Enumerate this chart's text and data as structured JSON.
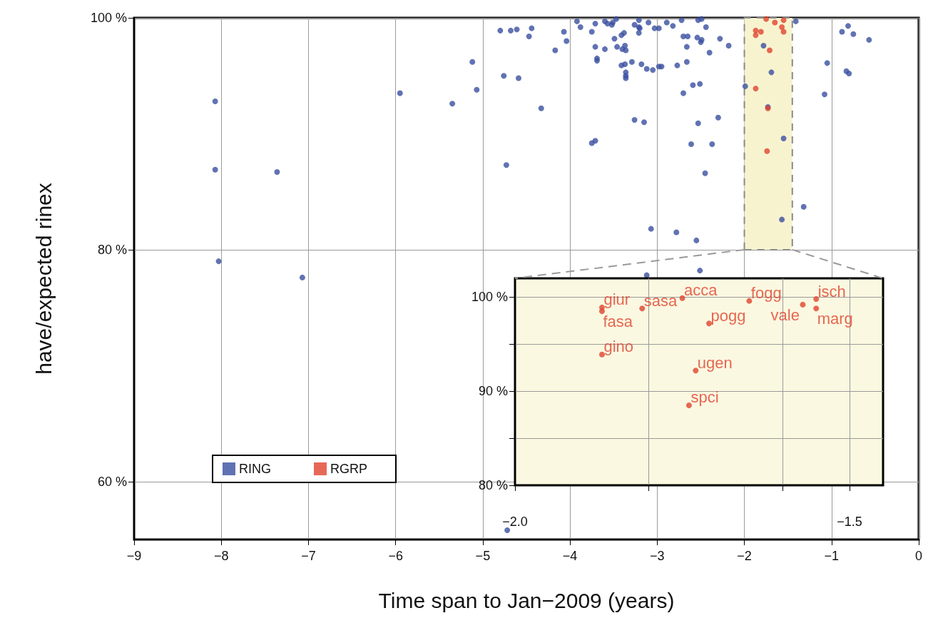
{
  "chart_data": [
    {
      "type": "scatter",
      "xlabel": "Time span to Jan−2009 (years)",
      "ylabel": "have/expected rinex",
      "xlim": [
        -9,
        0
      ],
      "ylim": [
        55,
        100
      ],
      "xticks": [
        {
          "value": -9,
          "label": "−9"
        },
        {
          "value": -8,
          "label": "−8"
        },
        {
          "value": -7,
          "label": "−7"
        },
        {
          "value": -6,
          "label": "−6"
        },
        {
          "value": -5,
          "label": "−5"
        },
        {
          "value": -4,
          "label": "−4"
        },
        {
          "value": -3,
          "label": "−3"
        },
        {
          "value": -2,
          "label": "−2"
        },
        {
          "value": -1,
          "label": "−1"
        },
        0
      ],
      "yticks": [
        {
          "value": 60,
          "label": "60 %"
        },
        {
          "value": 80,
          "label": "80 %"
        },
        {
          "value": 100,
          "label": "100 %"
        }
      ],
      "grid": true,
      "legend": "bottom left",
      "marker": "circle",
      "bands": [
        {
          "axis": "x",
          "from": -2.0,
          "to": -1.45,
          "color": "#f8f3cf"
        }
      ],
      "series": [
        {
          "name": "RING",
          "color": "#3a4fa0",
          "x": [
            -8.07,
            -8.07,
            -7.36,
            -8.03,
            -7.07,
            -5.95,
            -5.35,
            -5.12,
            -5.07,
            -4.8,
            -4.68,
            -4.61,
            -4.44,
            -4.47,
            -4.76,
            -4.59,
            -4.33,
            -4.73,
            -4.17,
            -4.07,
            -4.04,
            -3.92,
            -3.88,
            -3.71,
            -3.75,
            -3.71,
            -3.6,
            -3.69,
            -3.69,
            -3.6,
            -3.57,
            -3.51,
            -3.52,
            -3.47,
            -3.49,
            -3.41,
            -3.38,
            -3.46,
            -3.4,
            -3.37,
            -3.36,
            -3.41,
            -3.37,
            -3.36,
            -3.36,
            -3.36,
            -3.29,
            -3.18,
            -3.12,
            -3.05,
            -2.98,
            -2.95,
            -3.26,
            -3.21,
            -3.21,
            -3.21,
            -3.2,
            -3.1,
            -3.03,
            -2.98,
            -2.89,
            -2.82,
            -2.72,
            -2.7,
            -2.65,
            -2.66,
            -2.54,
            -2.49,
            -2.5,
            -2.53,
            -2.49,
            -2.44,
            -2.4,
            -2.28,
            -2.18,
            -2.77,
            -2.66,
            -2.59,
            -2.51,
            -2.7,
            -1.99,
            -3.26,
            -3.15,
            -2.53,
            -2.3,
            -3.75,
            -3.71,
            -2.61,
            -2.37,
            -2.45,
            -3.07,
            -2.78,
            -2.55,
            -3.12,
            -2.51,
            -4.72,
            -1.41,
            -1.78,
            -1.69,
            -1.55,
            -1.32,
            -1.57,
            -1.73,
            -0.81,
            -0.88,
            -0.75,
            -0.57,
            -1.05,
            -0.83,
            -0.8,
            -1.08
          ],
          "values": [
            92.8,
            86.9,
            86.7,
            79.0,
            77.6,
            93.5,
            92.6,
            96.2,
            93.8,
            98.9,
            98.9,
            99.0,
            99.1,
            98.4,
            95.0,
            94.8,
            92.2,
            87.3,
            97.2,
            98.8,
            98.0,
            99.7,
            99.2,
            99.5,
            98.8,
            97.5,
            97.3,
            96.5,
            96.3,
            99.7,
            99.5,
            99.6,
            99.4,
            99.9,
            98.2,
            98.5,
            98.7,
            97.5,
            97.3,
            97.6,
            97.2,
            95.9,
            96.0,
            95.3,
            95.0,
            94.8,
            96.2,
            96.0,
            95.6,
            95.5,
            95.8,
            95.8,
            99.4,
            99.2,
            99.8,
            98.7,
            99.1,
            99.6,
            99.1,
            99.1,
            99.6,
            99.3,
            99.8,
            98.4,
            98.4,
            97.5,
            98.3,
            98.1,
            97.9,
            99.8,
            99.9,
            99.2,
            97.0,
            98.2,
            97.6,
            95.9,
            96.2,
            94.2,
            94.3,
            93.5,
            94.1,
            91.2,
            91.0,
            90.9,
            91.4,
            89.2,
            89.4,
            89.1,
            89.1,
            86.6,
            81.8,
            81.5,
            80.8,
            77.8,
            78.2,
            55.8,
            99.7,
            97.6,
            95.3,
            89.6,
            83.7,
            82.6,
            92.3,
            99.3,
            98.8,
            98.6,
            98.1,
            96.1,
            95.4,
            95.2,
            93.4
          ]
        },
        {
          "name": "RGRP",
          "color": "#e0432e",
          "x": [
            -1.87,
            -1.87,
            -1.81,
            -1.75,
            -1.65,
            -1.71,
            -1.57,
            -1.55,
            -1.55,
            -1.87,
            -1.73,
            -1.74
          ],
          "values": [
            98.9,
            98.5,
            98.8,
            99.9,
            99.6,
            97.2,
            99.2,
            99.8,
            98.8,
            93.9,
            92.2,
            88.5
          ]
        }
      ]
    },
    {
      "type": "scatter",
      "xlim": [
        -2.0,
        -1.45
      ],
      "ylim": [
        80,
        102
      ],
      "xticks": [
        {
          "value": -2.0,
          "label": "−2.0"
        },
        {
          "value": -1.8,
          "label": null
        },
        {
          "value": -1.6,
          "label": null
        },
        {
          "value": -1.5,
          "label": "−1.5"
        }
      ],
      "yticks": [
        {
          "value": 80,
          "label": "80 %"
        },
        {
          "value": 85,
          "label": null
        },
        {
          "value": 90,
          "label": "90 %"
        },
        {
          "value": 95,
          "label": null
        },
        {
          "value": 100,
          "label": "100 %"
        }
      ],
      "grid": true,
      "marker": "circle",
      "series": [
        {
          "color": "#e0432e",
          "x": [
            -1.87,
            -1.87,
            -1.81,
            -1.75,
            -1.65,
            -1.71,
            -1.57,
            -1.55,
            -1.55,
            -1.87,
            -1.73,
            -1.74
          ],
          "values": [
            98.9,
            98.5,
            98.8,
            99.9,
            99.6,
            97.2,
            99.2,
            99.8,
            98.8,
            93.9,
            92.2,
            88.5
          ]
        }
      ],
      "annotations": [
        {
          "text": "giur",
          "x": -1.87,
          "y": 98.9
        },
        {
          "text": "fasa",
          "x": -1.87,
          "y": 98.5
        },
        {
          "text": "sasa",
          "x": -1.81,
          "y": 98.8
        },
        {
          "text": "acca",
          "x": -1.75,
          "y": 99.9
        },
        {
          "text": "fogg",
          "x": -1.65,
          "y": 99.6
        },
        {
          "text": "pogg",
          "x": -1.71,
          "y": 97.2
        },
        {
          "text": "vale",
          "x": -1.57,
          "y": 99.2
        },
        {
          "text": "isch",
          "x": -1.55,
          "y": 99.8
        },
        {
          "text": "marg",
          "x": -1.55,
          "y": 98.8
        },
        {
          "text": "gino",
          "x": -1.87,
          "y": 93.9
        },
        {
          "text": "ugen",
          "x": -1.73,
          "y": 92.2
        },
        {
          "text": "spci",
          "x": -1.74,
          "y": 88.5
        }
      ]
    }
  ]
}
